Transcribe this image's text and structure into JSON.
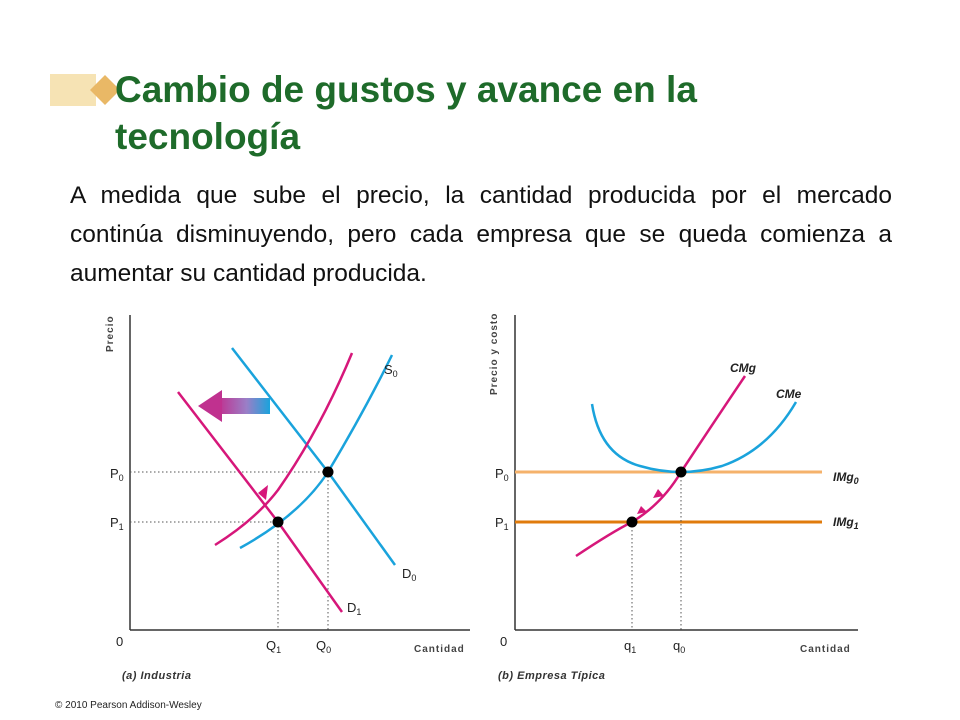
{
  "title": {
    "line1": "Cambio de gustos y avance en la",
    "line2": "tecnología"
  },
  "body": "A medida que sube el precio, la cantidad producida por el mercado continúa disminuyendo, pero cada empresa que se queda comienza a aumentar su cantidad producida.",
  "panel_a": {
    "y_axis": "Precio",
    "x_axis": "Cantidad",
    "origin": "0",
    "p0": "P",
    "p0_sub": "0",
    "p1": "P",
    "p1_sub": "1",
    "q1": "Q",
    "q1_sub": "1",
    "q0": "Q",
    "q0_sub": "0",
    "s0": "S",
    "s0_sub": "0",
    "d0": "D",
    "d0_sub": "0",
    "d1": "D",
    "d1_sub": "1",
    "caption": "(a) Industria"
  },
  "panel_b": {
    "y_axis": "Precio y costo",
    "x_axis": "Cantidad",
    "origin": "0",
    "p0": "P",
    "p0_sub": "0",
    "p1": "P",
    "p1_sub": "1",
    "q1": "q",
    "q1_sub": "1",
    "q0": "q",
    "q0_sub": "0",
    "cmg": "CMg",
    "cme": "CMe",
    "img0": "IMg",
    "img0_sub": "0",
    "img1": "IMg",
    "img1_sub": "1",
    "caption": "(b) Empresa Típica"
  },
  "copyright": "© 2010 Pearson Addison-Wesley",
  "colors": {
    "title": "#1e6b2a",
    "supply_cyan": "#1aa3dc",
    "demand_magenta": "#d6177a",
    "price_high": "#f5b26b",
    "price_low": "#e07b0c"
  }
}
